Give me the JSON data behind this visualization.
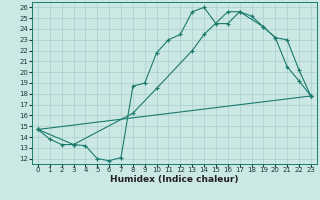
{
  "title": "",
  "xlabel": "Humidex (Indice chaleur)",
  "bg_color": "#cce8e4",
  "grid_color": "#aacfcb",
  "line_color": "#1a7a6e",
  "xlim": [
    -0.5,
    23.5
  ],
  "ylim": [
    11.5,
    26.5
  ],
  "xticks": [
    0,
    1,
    2,
    3,
    4,
    5,
    6,
    7,
    8,
    9,
    10,
    11,
    12,
    13,
    14,
    15,
    16,
    17,
    18,
    19,
    20,
    21,
    22,
    23
  ],
  "yticks": [
    12,
    13,
    14,
    15,
    16,
    17,
    18,
    19,
    20,
    21,
    22,
    23,
    24,
    25,
    26
  ],
  "line1_x": [
    0,
    1,
    2,
    3,
    4,
    5,
    6,
    7,
    8,
    9,
    10,
    11,
    12,
    13,
    14,
    15,
    16,
    17,
    18,
    19,
    20,
    21,
    22,
    23
  ],
  "line1_y": [
    14.7,
    13.8,
    13.3,
    13.3,
    13.2,
    12.0,
    11.8,
    12.1,
    18.7,
    19.0,
    21.8,
    23.0,
    23.5,
    25.6,
    26.0,
    24.5,
    24.5,
    25.6,
    25.2,
    24.2,
    23.2,
    20.5,
    19.2,
    17.8
  ],
  "line2_x": [
    0,
    3,
    8,
    10,
    13,
    14,
    16,
    17,
    19,
    20,
    21,
    22,
    23
  ],
  "line2_y": [
    14.7,
    13.3,
    16.2,
    18.5,
    22.0,
    23.5,
    25.6,
    25.6,
    24.2,
    23.2,
    23.0,
    20.2,
    17.8
  ],
  "line3_x": [
    0,
    23
  ],
  "line3_y": [
    14.7,
    17.8
  ],
  "marker_size": 3.5,
  "tick_fontsize": 5,
  "xlabel_fontsize": 6.5
}
